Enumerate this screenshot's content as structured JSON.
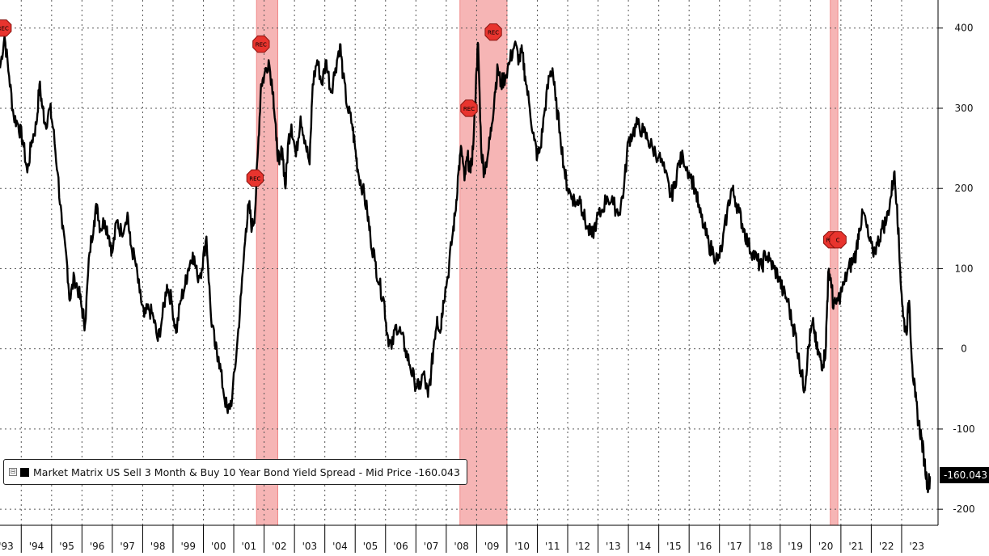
{
  "chart_data": {
    "type": "line",
    "series": [
      {
        "name": "Market Matrix US Sell 3 Month & Buy 10 Year Bond Yield Spread - Mid Price",
        "last_value": "-160.043",
        "color": "#000000",
        "points": [
          [
            1992.8,
            350
          ],
          [
            1992.95,
            390
          ],
          [
            1993.1,
            340
          ],
          [
            1993.25,
            290
          ],
          [
            1993.4,
            280
          ],
          [
            1993.55,
            260
          ],
          [
            1993.7,
            220
          ],
          [
            1993.85,
            260
          ],
          [
            1994.0,
            280
          ],
          [
            1994.1,
            330
          ],
          [
            1994.2,
            300
          ],
          [
            1994.3,
            280
          ],
          [
            1994.45,
            300
          ],
          [
            1994.55,
            275
          ],
          [
            1994.7,
            220
          ],
          [
            1994.85,
            150
          ],
          [
            1995.0,
            110
          ],
          [
            1995.1,
            60
          ],
          [
            1995.25,
            90
          ],
          [
            1995.4,
            70
          ],
          [
            1995.5,
            50
          ],
          [
            1995.6,
            30
          ],
          [
            1995.75,
            120
          ],
          [
            1995.9,
            160
          ],
          [
            1996.0,
            180
          ],
          [
            1996.1,
            150
          ],
          [
            1996.25,
            160
          ],
          [
            1996.4,
            140
          ],
          [
            1996.5,
            120
          ],
          [
            1996.65,
            160
          ],
          [
            1996.8,
            145
          ],
          [
            1997.0,
            170
          ],
          [
            1997.1,
            130
          ],
          [
            1997.25,
            110
          ],
          [
            1997.4,
            70
          ],
          [
            1997.55,
            40
          ],
          [
            1997.7,
            50
          ],
          [
            1997.85,
            40
          ],
          [
            1998.0,
            10
          ],
          [
            1998.15,
            40
          ],
          [
            1998.3,
            80
          ],
          [
            1998.45,
            60
          ],
          [
            1998.6,
            20
          ],
          [
            1998.75,
            60
          ],
          [
            1998.9,
            80
          ],
          [
            1999.0,
            100
          ],
          [
            1999.15,
            120
          ],
          [
            1999.3,
            90
          ],
          [
            1999.45,
            100
          ],
          [
            1999.6,
            140
          ],
          [
            1999.75,
            40
          ],
          [
            1999.9,
            0
          ],
          [
            2000.0,
            -10
          ],
          [
            2000.15,
            -50
          ],
          [
            2000.3,
            -80
          ],
          [
            2000.45,
            -60
          ],
          [
            2000.6,
            0
          ],
          [
            2000.75,
            70
          ],
          [
            2000.9,
            150
          ],
          [
            2001.0,
            180
          ],
          [
            2001.1,
            150
          ],
          [
            2001.2,
            170
          ],
          [
            2001.3,
            250
          ],
          [
            2001.4,
            330
          ],
          [
            2001.5,
            340
          ],
          [
            2001.65,
            360
          ],
          [
            2001.8,
            320
          ],
          [
            2001.9,
            260
          ],
          [
            2002.0,
            230
          ],
          [
            2002.1,
            250
          ],
          [
            2002.2,
            200
          ],
          [
            2002.3,
            260
          ],
          [
            2002.4,
            280
          ],
          [
            2002.55,
            240
          ],
          [
            2002.7,
            290
          ],
          [
            2002.85,
            260
          ],
          [
            2003.0,
            230
          ],
          [
            2003.1,
            330
          ],
          [
            2003.25,
            360
          ],
          [
            2003.4,
            330
          ],
          [
            2003.55,
            360
          ],
          [
            2003.7,
            320
          ],
          [
            2003.85,
            350
          ],
          [
            2004.0,
            380
          ],
          [
            2004.1,
            340
          ],
          [
            2004.25,
            300
          ],
          [
            2004.4,
            280
          ],
          [
            2004.5,
            250
          ],
          [
            2004.6,
            220
          ],
          [
            2004.75,
            200
          ],
          [
            2004.9,
            170
          ],
          [
            2005.0,
            140
          ],
          [
            2005.15,
            110
          ],
          [
            2005.3,
            80
          ],
          [
            2005.45,
            60
          ],
          [
            2005.55,
            20
          ],
          [
            2005.7,
            0
          ],
          [
            2005.85,
            30
          ],
          [
            2006.0,
            20
          ],
          [
            2006.15,
            0
          ],
          [
            2006.3,
            -20
          ],
          [
            2006.45,
            -40
          ],
          [
            2006.6,
            -50
          ],
          [
            2006.75,
            -30
          ],
          [
            2006.9,
            -60
          ],
          [
            2007.0,
            -30
          ],
          [
            2007.1,
            10
          ],
          [
            2007.2,
            40
          ],
          [
            2007.3,
            20
          ],
          [
            2007.4,
            60
          ],
          [
            2007.55,
            90
          ],
          [
            2007.7,
            140
          ],
          [
            2007.8,
            170
          ],
          [
            2007.9,
            220
          ],
          [
            2008.0,
            250
          ],
          [
            2008.1,
            210
          ],
          [
            2008.2,
            240
          ],
          [
            2008.3,
            220
          ],
          [
            2008.4,
            260
          ],
          [
            2008.5,
            350
          ],
          [
            2008.55,
            380
          ],
          [
            2008.65,
            250
          ],
          [
            2008.75,
            220
          ],
          [
            2008.9,
            250
          ],
          [
            2009.0,
            280
          ],
          [
            2009.1,
            320
          ],
          [
            2009.2,
            350
          ],
          [
            2009.3,
            330
          ],
          [
            2009.45,
            340
          ],
          [
            2009.6,
            360
          ],
          [
            2009.75,
            380
          ],
          [
            2009.9,
            360
          ],
          [
            2010.0,
            370
          ],
          [
            2010.1,
            340
          ],
          [
            2010.25,
            300
          ],
          [
            2010.4,
            260
          ],
          [
            2010.5,
            240
          ],
          [
            2010.6,
            250
          ],
          [
            2010.75,
            300
          ],
          [
            2010.9,
            340
          ],
          [
            2011.0,
            350
          ],
          [
            2011.1,
            310
          ],
          [
            2011.25,
            270
          ],
          [
            2011.4,
            220
          ],
          [
            2011.5,
            200
          ],
          [
            2011.65,
            190
          ],
          [
            2011.8,
            180
          ],
          [
            2011.9,
            190
          ],
          [
            2012.0,
            170
          ],
          [
            2012.15,
            150
          ],
          [
            2012.3,
            140
          ],
          [
            2012.45,
            160
          ],
          [
            2012.6,
            170
          ],
          [
            2012.8,
            190
          ],
          [
            2013.0,
            180
          ],
          [
            2013.2,
            170
          ],
          [
            2013.35,
            200
          ],
          [
            2013.5,
            260
          ],
          [
            2013.65,
            270
          ],
          [
            2013.8,
            280
          ],
          [
            2014.0,
            270
          ],
          [
            2014.15,
            260
          ],
          [
            2014.3,
            250
          ],
          [
            2014.5,
            240
          ],
          [
            2014.7,
            220
          ],
          [
            2014.9,
            190
          ],
          [
            2015.0,
            200
          ],
          [
            2015.15,
            230
          ],
          [
            2015.3,
            240
          ],
          [
            2015.5,
            220
          ],
          [
            2015.7,
            200
          ],
          [
            2015.85,
            170
          ],
          [
            2016.0,
            150
          ],
          [
            2016.15,
            130
          ],
          [
            2016.3,
            120
          ],
          [
            2016.45,
            110
          ],
          [
            2016.6,
            130
          ],
          [
            2016.75,
            170
          ],
          [
            2016.9,
            200
          ],
          [
            2017.0,
            190
          ],
          [
            2017.15,
            170
          ],
          [
            2017.3,
            150
          ],
          [
            2017.45,
            130
          ],
          [
            2017.6,
            120
          ],
          [
            2017.75,
            110
          ],
          [
            2017.9,
            100
          ],
          [
            2018.0,
            120
          ],
          [
            2018.15,
            110
          ],
          [
            2018.3,
            100
          ],
          [
            2018.45,
            90
          ],
          [
            2018.6,
            70
          ],
          [
            2018.75,
            60
          ],
          [
            2018.9,
            30
          ],
          [
            2019.0,
            20
          ],
          [
            2019.1,
            -10
          ],
          [
            2019.2,
            -30
          ],
          [
            2019.3,
            -50
          ],
          [
            2019.4,
            -10
          ],
          [
            2019.5,
            20
          ],
          [
            2019.6,
            30
          ],
          [
            2019.7,
            0
          ],
          [
            2019.8,
            -10
          ],
          [
            2019.9,
            -20
          ],
          [
            2020.0,
            0
          ],
          [
            2020.05,
            60
          ],
          [
            2020.1,
            100
          ],
          [
            2020.2,
            80
          ],
          [
            2020.25,
            50
          ],
          [
            2020.4,
            60
          ],
          [
            2020.6,
            80
          ],
          [
            2020.75,
            100
          ],
          [
            2020.9,
            110
          ],
          [
            2021.0,
            120
          ],
          [
            2021.1,
            150
          ],
          [
            2021.25,
            170
          ],
          [
            2021.4,
            140
          ],
          [
            2021.55,
            120
          ],
          [
            2021.7,
            130
          ],
          [
            2021.85,
            150
          ],
          [
            2022.0,
            160
          ],
          [
            2022.15,
            190
          ],
          [
            2022.25,
            220
          ],
          [
            2022.35,
            180
          ],
          [
            2022.45,
            100
          ],
          [
            2022.55,
            40
          ],
          [
            2022.65,
            20
          ],
          [
            2022.75,
            60
          ],
          [
            2022.85,
            -20
          ],
          [
            2022.95,
            -60
          ],
          [
            2023.05,
            -90
          ],
          [
            2023.15,
            -110
          ],
          [
            2023.25,
            -140
          ],
          [
            2023.35,
            -170
          ],
          [
            2023.45,
            -160
          ]
        ]
      }
    ],
    "x_ticks": [
      "'93",
      "'94",
      "'95",
      "'96",
      "'97",
      "'98",
      "'99",
      "'00",
      "'01",
      "'02",
      "'03",
      "'04",
      "'05",
      "'06",
      "'07",
      "'08",
      "'09",
      "'10",
      "'11",
      "'12",
      "'13",
      "'14",
      "'15",
      "'16",
      "'17",
      "'18",
      "'19",
      "'20",
      "'21",
      "'22",
      "'23"
    ],
    "x_tick_years": [
      1993,
      1994,
      1995,
      1996,
      1997,
      1998,
      1999,
      2000,
      2001,
      2002,
      2003,
      2004,
      2005,
      2006,
      2007,
      2008,
      2009,
      2010,
      2011,
      2012,
      2013,
      2014,
      2015,
      2016,
      2017,
      2018,
      2019,
      2020,
      2021,
      2022,
      2023
    ],
    "y_ticks": [
      "400",
      "300",
      "200",
      "100",
      "0",
      "-100",
      "-200"
    ],
    "y_tick_values": [
      400,
      300,
      200,
      100,
      0,
      -100,
      -200
    ],
    "xlim": [
      1992.8,
      2023.7
    ],
    "ylim": [
      -220,
      435
    ],
    "y_axis_side": "right",
    "grid": true,
    "recession_bands": [
      [
        2001.25,
        2001.95
      ],
      [
        2007.95,
        2009.5
      ],
      [
        2020.15,
        2020.4
      ]
    ],
    "rec_markers": [
      {
        "label": "REC",
        "x": 1992.9,
        "y": 400
      },
      {
        "label": "REC",
        "x": 2001.4,
        "y": 380
      },
      {
        "label": "REC",
        "x": 2001.2,
        "y": 213
      },
      {
        "label": "REC",
        "x": 2008.25,
        "y": 300
      },
      {
        "label": "REC",
        "x": 2009.05,
        "y": 395
      },
      {
        "label": "REC",
        "x": 2020.2,
        "y": 136
      },
      {
        "label": "C",
        "x": 2020.4,
        "y": 136
      }
    ],
    "legend": {
      "position": "bottom-left"
    },
    "colors": {
      "band": "#f6b5b5",
      "band_edge": "#f18a8a",
      "marker": "#e8342e",
      "line": "#000000"
    }
  }
}
